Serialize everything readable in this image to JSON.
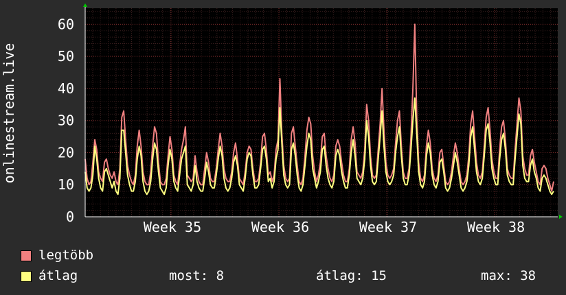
{
  "chart_data": {
    "type": "line",
    "ylabel": "onlinestream.live",
    "ylim": [
      0,
      65
    ],
    "yticks": [
      0,
      10,
      20,
      30,
      40,
      50,
      60
    ],
    "xticks": [
      "Week 35",
      "Week 36",
      "Week 37",
      "Week 38"
    ],
    "grid": true,
    "colors": {
      "background": "#2b2b2b",
      "plot": "#000000",
      "grid": "#5a2a2a"
    },
    "series": [
      {
        "name": "legtöbb",
        "color": "#f08080",
        "values": [
          18,
          12,
          10,
          11,
          17,
          24,
          21,
          14,
          12,
          11,
          17,
          18,
          15,
          13,
          12,
          14,
          11,
          10,
          15,
          31,
          33,
          24,
          16,
          13,
          11,
          10,
          13,
          22,
          27,
          22,
          14,
          11,
          10,
          10,
          14,
          22,
          28,
          26,
          17,
          11,
          10,
          10,
          12,
          19,
          25,
          21,
          13,
          11,
          10,
          16,
          21,
          24,
          28,
          13,
          12,
          11,
          12,
          19,
          14,
          11,
          10,
          10,
          15,
          20,
          17,
          12,
          11,
          11,
          15,
          21,
          26,
          22,
          15,
          12,
          11,
          11,
          14,
          20,
          23,
          18,
          12,
          11,
          10,
          14,
          20,
          22,
          21,
          15,
          11,
          11,
          12,
          17,
          25,
          26,
          21,
          13,
          14,
          11,
          13,
          21,
          24,
          43,
          26,
          16,
          12,
          11,
          12,
          26,
          28,
          22,
          16,
          11,
          10,
          12,
          19,
          27,
          31,
          29,
          19,
          14,
          11,
          13,
          17,
          25,
          26,
          19,
          15,
          12,
          11,
          13,
          22,
          24,
          22,
          17,
          13,
          11,
          11,
          15,
          24,
          28,
          23,
          14,
          13,
          12,
          14,
          21,
          35,
          30,
          19,
          13,
          12,
          13,
          21,
          29,
          40,
          27,
          17,
          13,
          12,
          13,
          15,
          23,
          30,
          33,
          22,
          14,
          12,
          12,
          15,
          25,
          40,
          60,
          31,
          17,
          12,
          11,
          13,
          22,
          27,
          23,
          15,
          12,
          11,
          13,
          20,
          21,
          16,
          11,
          10,
          11,
          14,
          19,
          23,
          20,
          15,
          11,
          10,
          11,
          13,
          19,
          29,
          33,
          25,
          17,
          13,
          12,
          14,
          22,
          31,
          34,
          27,
          18,
          14,
          12,
          12,
          21,
          28,
          30,
          24,
          15,
          13,
          12,
          12,
          21,
          29,
          37,
          33,
          19,
          15,
          13,
          13,
          19,
          21,
          17,
          14,
          11,
          10,
          15,
          16,
          15,
          12,
          10,
          8,
          11
        ],
        "now": "",
        "avg": "",
        "max": ""
      },
      {
        "name": "átlag",
        "color": "#ffff80",
        "values": [
          14,
          9,
          8,
          9,
          13,
          22,
          18,
          12,
          9,
          8,
          14,
          15,
          13,
          11,
          9,
          11,
          8,
          7,
          12,
          27,
          27,
          20,
          13,
          10,
          8,
          8,
          11,
          18,
          22,
          19,
          11,
          8,
          7,
          8,
          11,
          18,
          23,
          21,
          14,
          9,
          8,
          7,
          9,
          16,
          21,
          18,
          11,
          9,
          8,
          13,
          18,
          20,
          22,
          10,
          9,
          8,
          10,
          16,
          11,
          9,
          8,
          8,
          12,
          17,
          14,
          10,
          9,
          9,
          13,
          18,
          22,
          19,
          12,
          9,
          8,
          9,
          12,
          17,
          19,
          16,
          10,
          9,
          8,
          12,
          18,
          20,
          19,
          13,
          9,
          9,
          10,
          15,
          21,
          22,
          18,
          11,
          12,
          9,
          11,
          18,
          21,
          34,
          23,
          13,
          10,
          9,
          10,
          21,
          23,
          19,
          13,
          9,
          8,
          10,
          16,
          22,
          26,
          24,
          15,
          12,
          9,
          11,
          14,
          21,
          22,
          16,
          12,
          10,
          9,
          11,
          19,
          21,
          19,
          14,
          11,
          9,
          9,
          13,
          20,
          24,
          19,
          12,
          11,
          10,
          12,
          18,
          30,
          25,
          16,
          11,
          10,
          11,
          18,
          25,
          33,
          22,
          14,
          11,
          10,
          11,
          13,
          20,
          25,
          28,
          19,
          12,
          10,
          10,
          13,
          21,
          30,
          37,
          26,
          14,
          10,
          9,
          11,
          19,
          23,
          20,
          13,
          10,
          9,
          11,
          17,
          18,
          14,
          9,
          8,
          9,
          12,
          16,
          20,
          17,
          13,
          9,
          8,
          9,
          11,
          16,
          25,
          28,
          21,
          14,
          11,
          10,
          12,
          19,
          27,
          29,
          23,
          15,
          12,
          10,
          10,
          18,
          24,
          26,
          21,
          13,
          11,
          10,
          10,
          18,
          25,
          32,
          29,
          16,
          12,
          11,
          11,
          16,
          18,
          14,
          12,
          9,
          8,
          12,
          13,
          12,
          10,
          8,
          7,
          8
        ]
      }
    ]
  },
  "legend": {
    "items": [
      {
        "label": "legtöbb",
        "color": "#f08080"
      },
      {
        "label": "átlag",
        "color": "#ffff80"
      }
    ],
    "stats": {
      "now": "most: 8",
      "avg": "átlag: 15",
      "max": "max: 38"
    }
  }
}
